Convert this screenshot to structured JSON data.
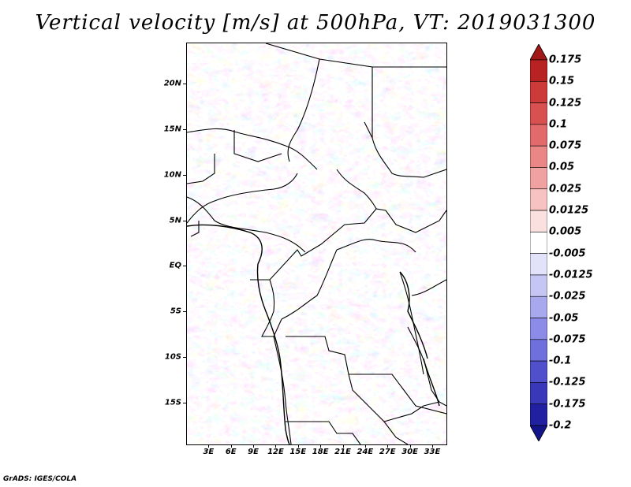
{
  "title": "Vertical velocity [m/s] at 500hPa, VT: 2019031300",
  "footer": "GrADS: IGES/COLA",
  "map": {
    "lat_labels": [
      "20N",
      "15N",
      "10N",
      "5N",
      "EQ",
      "5S",
      "10S",
      "15S"
    ],
    "lat_values": [
      20,
      15,
      10,
      5,
      0,
      -5,
      -10,
      -15
    ],
    "lon_labels": [
      "3E",
      "6E",
      "9E",
      "12E",
      "15E",
      "18E",
      "21E",
      "24E",
      "27E",
      "30E",
      "33E"
    ],
    "lon_values": [
      3,
      6,
      9,
      12,
      15,
      18,
      21,
      24,
      27,
      30,
      33
    ],
    "lat_range": [
      -19.5,
      24.5
    ],
    "lon_range": [
      0,
      34.8
    ]
  },
  "colorbar": {
    "labels": [
      "0.175",
      "0.15",
      "0.125",
      "0.1",
      "0.075",
      "0.05",
      "0.025",
      "0.0125",
      "0.005",
      "-0.005",
      "-0.0125",
      "-0.025",
      "-0.05",
      "-0.075",
      "-0.1",
      "-0.125",
      "-0.175",
      "-0.2"
    ],
    "colors": [
      "#a01818",
      "#b82222",
      "#cc3a3a",
      "#d95050",
      "#e26a6a",
      "#ea8686",
      "#f0a2a2",
      "#f6c2c2",
      "#fbe0e0",
      "#ffffff",
      "#e2e2fa",
      "#c6c6f4",
      "#a8a8ee",
      "#8c8ce8",
      "#7070dc",
      "#5050cc",
      "#3838b8",
      "#2020a0",
      "#14148a"
    ]
  }
}
